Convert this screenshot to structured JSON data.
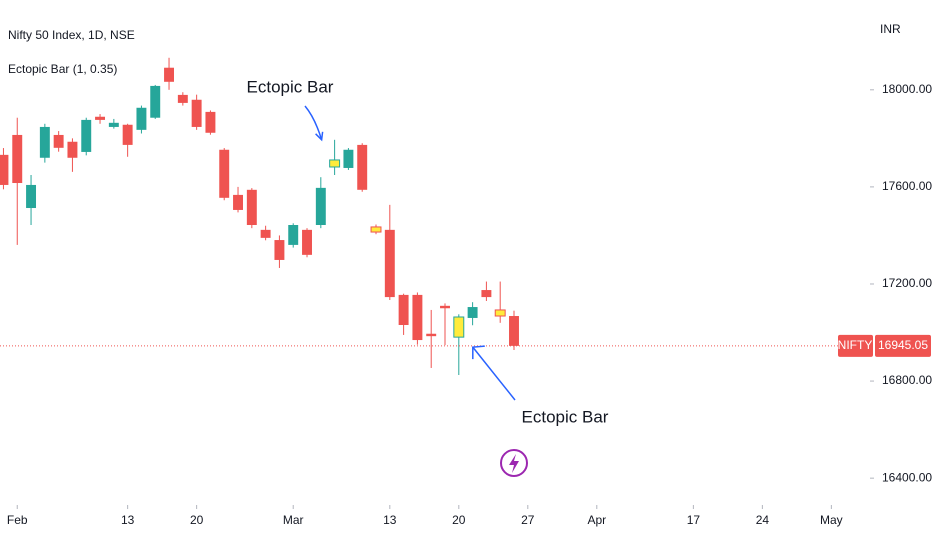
{
  "chart_data": {
    "type": "candlestick",
    "title": "Nifty 50 Index, 1D, NSE",
    "indicator": "Ectopic Bar (1, 0.35)",
    "currency": "INR",
    "up_color": "#26a69a",
    "down_color": "#ef5350",
    "highlight_color": "#ffeb3b",
    "candles": [
      {
        "o": 17732,
        "h": 17760,
        "l": 17590,
        "c": 17608
      },
      {
        "o": 17814,
        "h": 17885,
        "l": 17361,
        "c": 17616
      },
      {
        "o": 17513,
        "h": 17649,
        "l": 17443,
        "c": 17608
      },
      {
        "o": 17720,
        "h": 17860,
        "l": 17700,
        "c": 17847
      },
      {
        "o": 17814,
        "h": 17830,
        "l": 17745,
        "c": 17761
      },
      {
        "o": 17786,
        "h": 17800,
        "l": 17662,
        "c": 17720
      },
      {
        "o": 17744,
        "h": 17885,
        "l": 17730,
        "c": 17876
      },
      {
        "o": 17889,
        "h": 17900,
        "l": 17860,
        "c": 17876
      },
      {
        "o": 17847,
        "h": 17880,
        "l": 17840,
        "c": 17864
      },
      {
        "o": 17856,
        "h": 17860,
        "l": 17724,
        "c": 17773
      },
      {
        "o": 17835,
        "h": 17935,
        "l": 17820,
        "c": 17926
      },
      {
        "o": 17885,
        "h": 18020,
        "l": 17880,
        "c": 18016
      },
      {
        "o": 18091,
        "h": 18132,
        "l": 18000,
        "c": 18033
      },
      {
        "o": 17979,
        "h": 17990,
        "l": 17935,
        "c": 17946
      },
      {
        "o": 17959,
        "h": 17980,
        "l": 17835,
        "c": 17847
      },
      {
        "o": 17909,
        "h": 17915,
        "l": 17815,
        "c": 17823
      },
      {
        "o": 17753,
        "h": 17760,
        "l": 17545,
        "c": 17555
      },
      {
        "o": 17567,
        "h": 17600,
        "l": 17495,
        "c": 17505
      },
      {
        "o": 17588,
        "h": 17595,
        "l": 17430,
        "c": 17443
      },
      {
        "o": 17423,
        "h": 17440,
        "l": 17380,
        "c": 17390
      },
      {
        "o": 17381,
        "h": 17400,
        "l": 17266,
        "c": 17299
      },
      {
        "o": 17361,
        "h": 17450,
        "l": 17350,
        "c": 17443
      },
      {
        "o": 17423,
        "h": 17430,
        "l": 17310,
        "c": 17320
      },
      {
        "o": 17443,
        "h": 17640,
        "l": 17430,
        "c": 17596
      },
      {
        "o": 17682,
        "h": 17794,
        "l": 17649,
        "c": 17711,
        "ectopic": true
      },
      {
        "o": 17678,
        "h": 17760,
        "l": 17670,
        "c": 17753
      },
      {
        "o": 17773,
        "h": 17780,
        "l": 17580,
        "c": 17588
      },
      {
        "o": 17435,
        "h": 17445,
        "l": 17405,
        "c": 17414,
        "ectopic": true
      },
      {
        "o": 17423,
        "h": 17526,
        "l": 17134,
        "c": 17146
      },
      {
        "o": 17155,
        "h": 17160,
        "l": 16990,
        "c": 17031
      },
      {
        "o": 17155,
        "h": 17165,
        "l": 16950,
        "c": 16969
      },
      {
        "o": 16995,
        "h": 17093,
        "l": 16854,
        "c": 16985
      },
      {
        "o": 17110,
        "h": 17120,
        "l": 16948,
        "c": 17100
      },
      {
        "o": 16981,
        "h": 17075,
        "l": 16825,
        "c": 17064,
        "ectopic": true
      },
      {
        "o": 17060,
        "h": 17125,
        "l": 17030,
        "c": 17105
      },
      {
        "o": 17175,
        "h": 17210,
        "l": 17130,
        "c": 17146
      },
      {
        "o": 17093,
        "h": 17210,
        "l": 17040,
        "c": 17068,
        "ectopic": true
      },
      {
        "o": 17068,
        "h": 17090,
        "l": 16928,
        "c": 16945.05
      }
    ],
    "xlim": [
      -0.25,
      62.8
    ],
    "xticks": [
      {
        "value": 1,
        "label": "Feb"
      },
      {
        "value": 9,
        "label": "13"
      },
      {
        "value": 14,
        "label": "20"
      },
      {
        "value": 21,
        "label": "Mar"
      },
      {
        "value": 28,
        "label": "13"
      },
      {
        "value": 33,
        "label": "20"
      },
      {
        "value": 38,
        "label": "27"
      },
      {
        "value": 43,
        "label": "Apr"
      },
      {
        "value": 50,
        "label": "17"
      },
      {
        "value": 55,
        "label": "24"
      },
      {
        "value": 60,
        "label": "May"
      }
    ],
    "ylim": [
      16310,
      18370
    ],
    "yticks": [
      {
        "value": 16400,
        "label": "16400.00"
      },
      {
        "value": 16800,
        "label": "16800.00"
      },
      {
        "value": 17200,
        "label": "17200.00"
      },
      {
        "value": 17600,
        "label": "17600.00"
      },
      {
        "value": 18000,
        "label": "18000.00"
      }
    ],
    "last_price": {
      "symbol": "NIFTY",
      "value": 16945.05,
      "label": "16945.05"
    },
    "annotations": [
      {
        "text": "Ectopic Bar",
        "target": 24
      },
      {
        "text": "Ectopic Bar",
        "target": 33
      }
    ]
  }
}
